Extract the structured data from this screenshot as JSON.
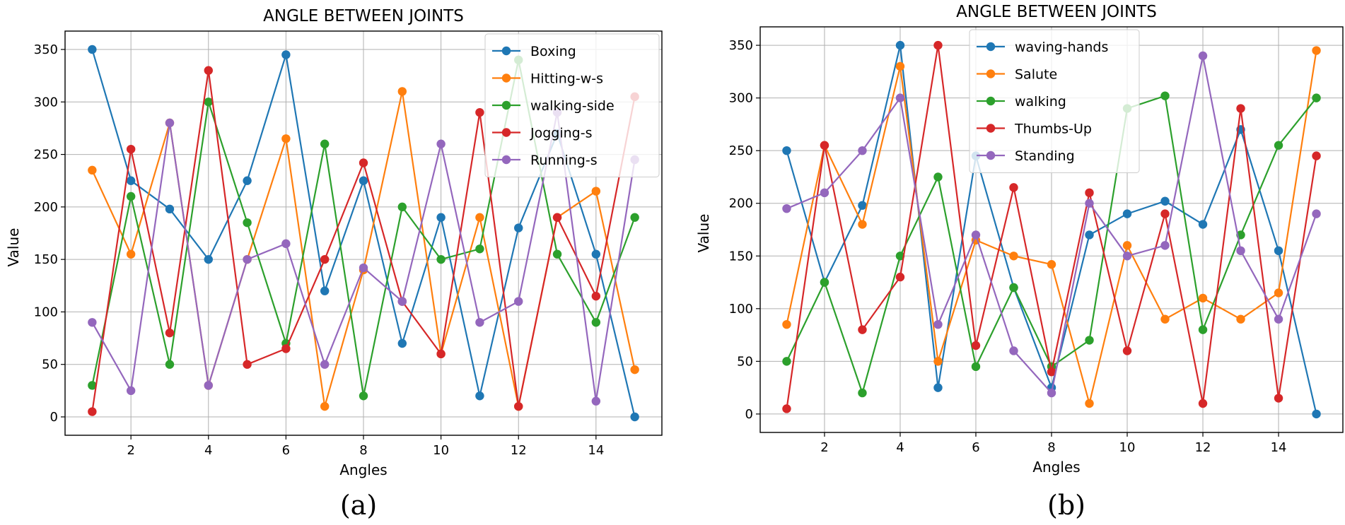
{
  "chart_data": [
    {
      "type": "line",
      "title": "ANGLE BETWEEN JOINTS",
      "xlabel": "Angles",
      "ylabel": "Value",
      "caption": "(a)",
      "x": [
        1,
        2,
        3,
        4,
        5,
        6,
        7,
        8,
        9,
        10,
        11,
        12,
        13,
        14,
        15
      ],
      "xticks": [
        2,
        4,
        6,
        8,
        10,
        12,
        14
      ],
      "yticks": [
        0,
        50,
        100,
        150,
        200,
        250,
        300,
        350
      ],
      "xlim": [
        0.3,
        15.7
      ],
      "ylim": [
        -17.5,
        367.5
      ],
      "grid": true,
      "legend_position": "top-right",
      "series": [
        {
          "name": "Boxing",
          "color": "#1f77b4",
          "values": [
            350,
            225,
            198,
            150,
            225,
            345,
            120,
            225,
            70,
            190,
            20,
            180,
            270,
            155,
            0
          ]
        },
        {
          "name": "Hitting-w-s",
          "color": "#ff7f0e",
          "values": [
            235,
            155,
            280,
            30,
            150,
            265,
            10,
            140,
            310,
            60,
            190,
            10,
            190,
            215,
            45
          ]
        },
        {
          "name": "walking-side",
          "color": "#2ca02c",
          "values": [
            30,
            210,
            50,
            300,
            185,
            70,
            260,
            20,
            200,
            150,
            160,
            340,
            155,
            90,
            190
          ]
        },
        {
          "name": "Jogging-s",
          "color": "#d62728",
          "values": [
            5,
            255,
            80,
            330,
            50,
            65,
            150,
            242,
            110,
            60,
            290,
            10,
            190,
            115,
            305
          ]
        },
        {
          "name": "Running-s",
          "color": "#9467bd",
          "values": [
            90,
            25,
            280,
            30,
            150,
            165,
            50,
            142,
            110,
            260,
            90,
            110,
            290,
            15,
            245
          ]
        }
      ]
    },
    {
      "type": "line",
      "title": "ANGLE BETWEEN JOINTS",
      "xlabel": "Angles",
      "ylabel": "Value",
      "caption": "(b)",
      "x": [
        1,
        2,
        3,
        4,
        5,
        6,
        7,
        8,
        9,
        10,
        11,
        12,
        13,
        14,
        15
      ],
      "xticks": [
        2,
        4,
        6,
        8,
        10,
        12,
        14
      ],
      "yticks": [
        0,
        50,
        100,
        150,
        200,
        250,
        300,
        350
      ],
      "xlim": [
        0.3,
        15.7
      ],
      "ylim": [
        -17.5,
        367.5
      ],
      "grid": true,
      "legend_position": "top-center",
      "series": [
        {
          "name": "waving-hands",
          "color": "#1f77b4",
          "values": [
            250,
            125,
            198,
            350,
            25,
            245,
            120,
            25,
            170,
            190,
            202,
            180,
            270,
            155,
            0
          ]
        },
        {
          "name": "Salute",
          "color": "#ff7f0e",
          "values": [
            85,
            255,
            180,
            330,
            50,
            165,
            150,
            142,
            10,
            160,
            90,
            110,
            90,
            115,
            345
          ]
        },
        {
          "name": "walking",
          "color": "#2ca02c",
          "values": [
            50,
            125,
            20,
            150,
            225,
            45,
            120,
            45,
            70,
            290,
            302,
            80,
            170,
            255,
            300
          ]
        },
        {
          "name": "Thumbs-Up",
          "color": "#d62728",
          "values": [
            5,
            255,
            80,
            130,
            350,
            65,
            215,
            40,
            210,
            60,
            190,
            10,
            290,
            15,
            245
          ]
        },
        {
          "name": "Standing",
          "color": "#9467bd",
          "values": [
            195,
            210,
            250,
            300,
            85,
            170,
            60,
            20,
            200,
            150,
            160,
            340,
            155,
            90,
            190
          ]
        }
      ]
    }
  ]
}
